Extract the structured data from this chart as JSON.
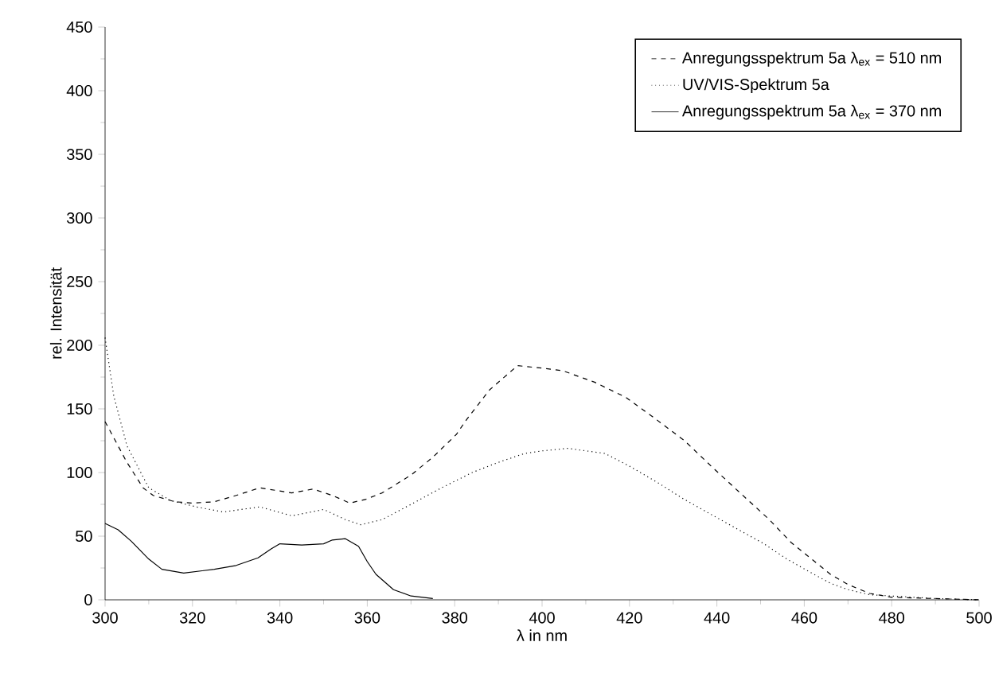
{
  "chart_data": {
    "type": "line",
    "xlabel": "λ in nm",
    "ylabel": "rel. Intensität",
    "xlim": [
      300,
      500
    ],
    "ylim": [
      0,
      450
    ],
    "xticks": [
      300,
      320,
      340,
      360,
      380,
      400,
      420,
      440,
      460,
      480,
      500
    ],
    "yticks": [
      0,
      50,
      100,
      150,
      200,
      250,
      300,
      350,
      400,
      450
    ],
    "legend": "top right",
    "grid": false,
    "series": [
      {
        "name": "Anregungsspektrum 5a λ$_{ex}$ = 510 nm",
        "color": "#000000",
        "line_style": "dashed",
        "x": [
          300,
          305,
          308.7,
          311,
          316,
          320,
          325,
          330,
          335.4,
          342.7,
          347.6,
          352,
          356,
          359.7,
          363.4,
          370,
          375,
          380.4,
          382.8,
          388,
          394.4,
          400,
          404.7,
          412,
          419.2,
          426,
          432.6,
          438.7,
          445,
          452,
          457,
          461.7,
          466,
          470,
          475,
          480,
          490,
          500
        ],
        "values": [
          140,
          108,
          88,
          82,
          77,
          76,
          77,
          82,
          88,
          84,
          87,
          82,
          76,
          79,
          84,
          98,
          112,
          130,
          142,
          165,
          184,
          182,
          180,
          171,
          159,
          142,
          125,
          105,
          85,
          63,
          45,
          32,
          20,
          12,
          5,
          2,
          1,
          0
        ]
      },
      {
        "name": "UV/VIS-Spektrum 5a",
        "color": "#000000",
        "line_style": "dotted",
        "x": [
          300,
          302,
          305,
          310,
          315,
          320.9,
          327,
          335.4,
          342.7,
          350,
          355,
          358.5,
          363.4,
          370,
          377,
          384,
          390,
          396,
          400,
          405.9,
          414.4,
          420,
          426.5,
          432,
          438.7,
          445,
          450.8,
          456,
          461.7,
          466,
          470,
          475,
          480,
          490,
          500
        ],
        "values": [
          206,
          160,
          121,
          88,
          78,
          73,
          69,
          73,
          66,
          71,
          63,
          59,
          63,
          75,
          88,
          100,
          108,
          115,
          117,
          119,
          115,
          105,
          92,
          80,
          67,
          55,
          44,
          32,
          21,
          13,
          8,
          4,
          3,
          1,
          0
        ]
      },
      {
        "name": "Anregungsspektrum 5a λ$_{ex}$ = 370 nm",
        "color": "#000000",
        "line_style": "solid",
        "x": [
          300,
          303,
          306,
          310,
          313,
          318,
          325,
          330,
          335,
          338,
          340,
          345,
          350,
          352,
          355,
          358,
          360,
          362,
          366,
          370,
          375
        ],
        "values": [
          60,
          55,
          46,
          32,
          24,
          21,
          24,
          27,
          33,
          40,
          44,
          43,
          44,
          47,
          48,
          42,
          30,
          20,
          8,
          3,
          1
        ]
      }
    ]
  }
}
